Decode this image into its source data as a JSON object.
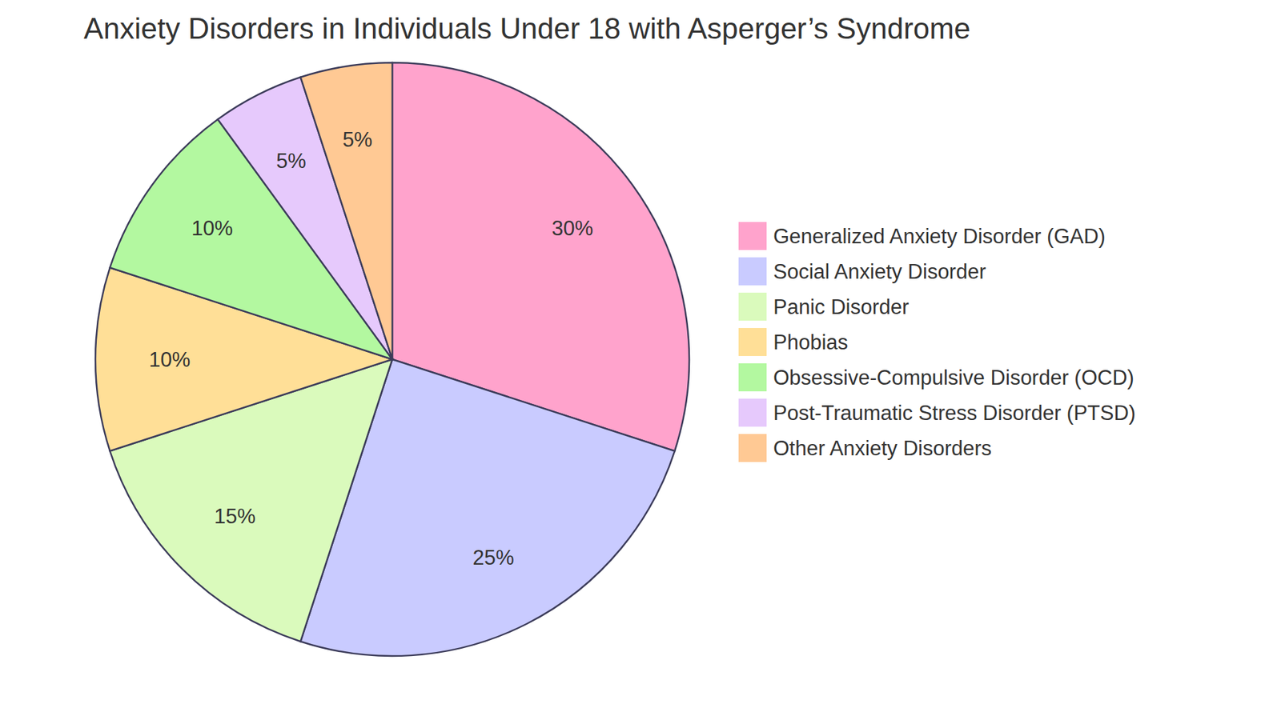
{
  "chart_data": {
    "type": "pie",
    "title": "Anxiety Disorders in Individuals Under 18 with Asperger’s Syndrome",
    "categories": [
      "Generalized Anxiety Disorder (GAD)",
      "Social Anxiety Disorder",
      "Panic Disorder",
      "Phobias",
      "Obsessive-Compulsive Disorder (OCD)",
      "Post-Traumatic Stress Disorder (PTSD)",
      "Other Anxiety Disorders"
    ],
    "values": [
      30,
      25,
      15,
      10,
      10,
      5,
      5
    ],
    "value_labels": [
      "30%",
      "25%",
      "15%",
      "10%",
      "10%",
      "5%",
      "5%"
    ],
    "colors": [
      "#ffa3cc",
      "#c9cbff",
      "#dafabc",
      "#ffdf97",
      "#b3f8a0",
      "#e6c9fc",
      "#ffc994"
    ],
    "data_labels": true,
    "legend": "right"
  }
}
